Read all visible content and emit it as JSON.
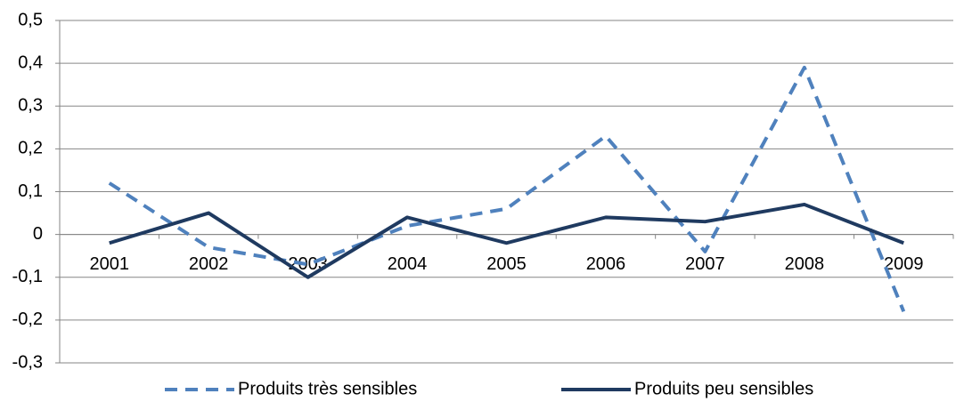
{
  "chart_data": {
    "type": "line",
    "categories": [
      "2001",
      "2002",
      "2003",
      "2004",
      "2005",
      "2006",
      "2007",
      "2008",
      "2009"
    ],
    "series": [
      {
        "name": "Produits très sensibles",
        "color": "#4f81bd",
        "dash": true,
        "values": [
          0.12,
          -0.03,
          -0.07,
          0.02,
          0.06,
          0.23,
          -0.04,
          0.39,
          -0.18
        ]
      },
      {
        "name": "Produits peu sensibles",
        "color": "#1f3a60",
        "dash": false,
        "values": [
          -0.02,
          0.05,
          -0.1,
          0.04,
          -0.02,
          0.04,
          0.03,
          0.07,
          -0.02
        ]
      }
    ],
    "ylim": [
      -0.3,
      0.5
    ],
    "yticks": [
      {
        "value": -0.3,
        "label": "-0,3"
      },
      {
        "value": -0.2,
        "label": "-0,2"
      },
      {
        "value": -0.1,
        "label": "-0,1"
      },
      0,
      {
        "value": 0.1,
        "label": "0,1"
      },
      {
        "value": 0.2,
        "label": "0,2"
      },
      {
        "value": 0.3,
        "label": "0,3"
      },
      {
        "value": 0.4,
        "label": "0,4"
      },
      {
        "value": 0.5,
        "label": "0,5"
      }
    ],
    "grid": true,
    "legend": "bottom"
  }
}
